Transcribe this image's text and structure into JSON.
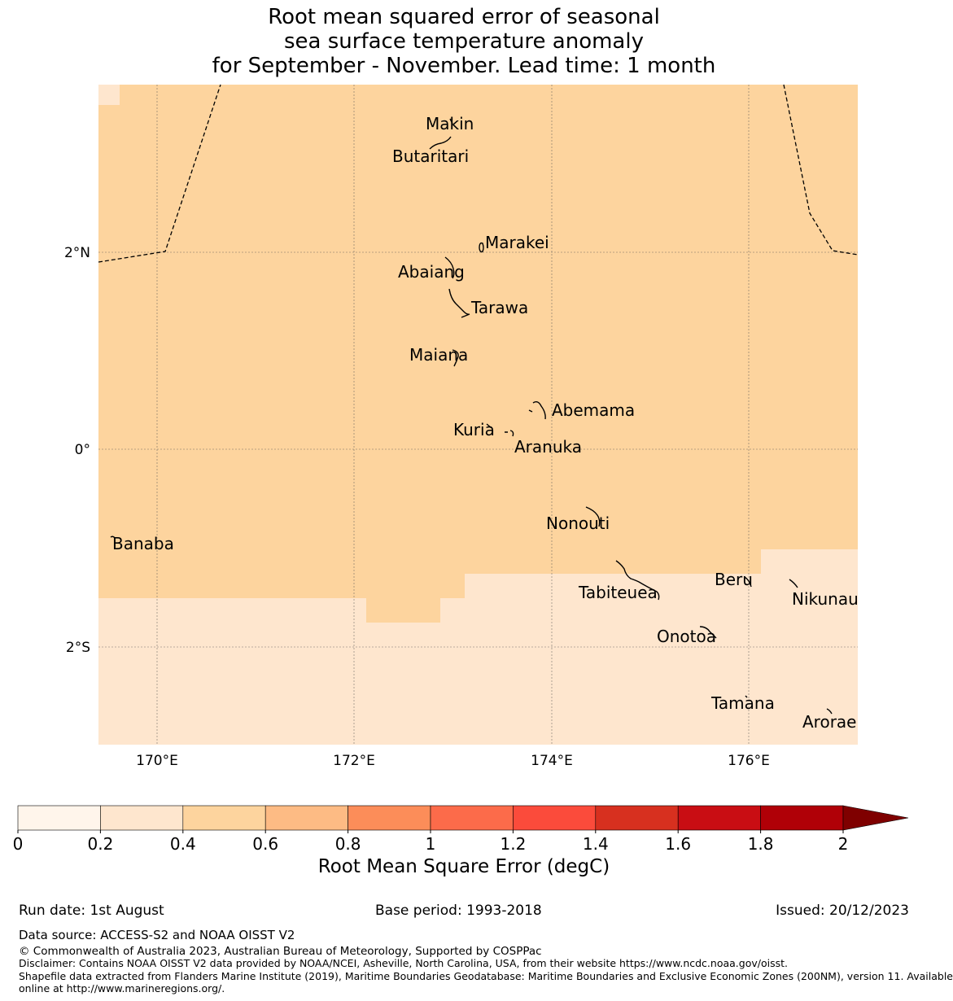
{
  "title": {
    "line1": "Root mean squared error of seasonal",
    "line2": "sea surface temperature anomaly",
    "line3": "for September - November. Lead time: 1 month"
  },
  "map": {
    "lon_ticks": [
      "170°E",
      "172°E",
      "174°E",
      "176°E"
    ],
    "lat_ticks": [
      "2°N",
      "0°",
      "2°S"
    ],
    "places": {
      "makin": "Makin",
      "butaritari": "Butaritari",
      "marakei": "Marakei",
      "abaiang": "Abaiang",
      "tarawa": "Tarawa",
      "maiana": "Maiana",
      "abemama": "Abemama",
      "kuria": "Kuria",
      "aranuka": "Aranuka",
      "nonouti": "Nonouti",
      "banaba": "Banaba",
      "beru": "Beru",
      "tabiteuea": "Tabiteuea",
      "nikunau": "Nikunau",
      "onotoa": "Onotoa",
      "tamana": "Tamana",
      "arorae": "Arorae"
    },
    "colors": {
      "band_0_2": "#fff5eb",
      "band_2_4": "#fee6ce",
      "band_4_6": "#fdd49e",
      "band_6_8": "#fdbb84"
    }
  },
  "colorbar": {
    "title": "Root Mean Square Error (degC)",
    "ticks": [
      "0",
      "0.2",
      "0.4",
      "0.6",
      "0.8",
      "1",
      "1.2",
      "1.4",
      "1.6",
      "1.8",
      "2"
    ],
    "colors": [
      "#fff5eb",
      "#fee6ce",
      "#fdd49e",
      "#fdbb84",
      "#fc8d59",
      "#fc6b4a",
      "#fb4b3b",
      "#d7301f",
      "#c90d13",
      "#b00007"
    ],
    "extend_color": "#7f0000"
  },
  "footer": {
    "run_date": "Run date: 1st August",
    "base_period": "Base period: 1993-2018",
    "issued": "Issued: 20/12/2023",
    "data_source": "Data source: ACCESS-S2 and NOAA OISST V2",
    "copyright": "© Commonwealth of Australia 2023, Australian Bureau of Meteorology, Supported by COSPPac",
    "disclaimer": "Disclaimer: Contains NOAA OISST V2 data provided by NOAA/NCEI, Asheville, North Carolina, USA, from their website https://www.ncdc.noaa.gov/oisst.",
    "shapefile_1": "Shapefile data extracted from Flanders Marine Institute (2019), Maritime Boundaries Geodatabase: Maritime Boundaries and Exclusive Economic Zones (200NM), version 11. Available",
    "shapefile_2": "online at http://www.marineregions.org/."
  }
}
